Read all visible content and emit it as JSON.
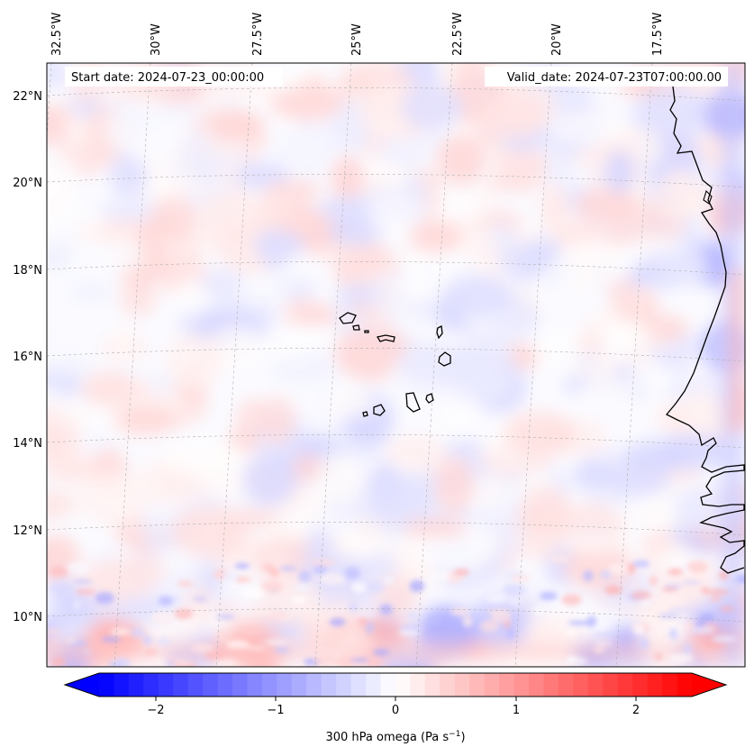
{
  "map": {
    "start_label": "Start date: 2024-07-23_00:00:00",
    "valid_label": "Valid_date: 2024-07-23T07:00:00.00",
    "lon_labels": [
      "32.5°W",
      "30°W",
      "27.5°W",
      "25°W",
      "22.5°W",
      "20°W",
      "17.5°W"
    ],
    "lat_labels": [
      "22°N",
      "20°N",
      "18°N",
      "16°N",
      "14°N",
      "12°N",
      "10°N"
    ],
    "colorbar": {
      "label": "300 hPa omega (Pa s",
      "label_sup": "−1",
      "label_end": ")",
      "ticks": [
        "−2",
        "−1",
        "0",
        "1",
        "2"
      ],
      "range": [
        -2.6,
        2.6
      ],
      "cmap": "bwr",
      "min_color": "#0000ff",
      "mid_color": "#ffffff",
      "max_color": "#ff0000"
    },
    "colors": {
      "coastline": "#000000",
      "gridline": "#b0b0b0"
    }
  }
}
